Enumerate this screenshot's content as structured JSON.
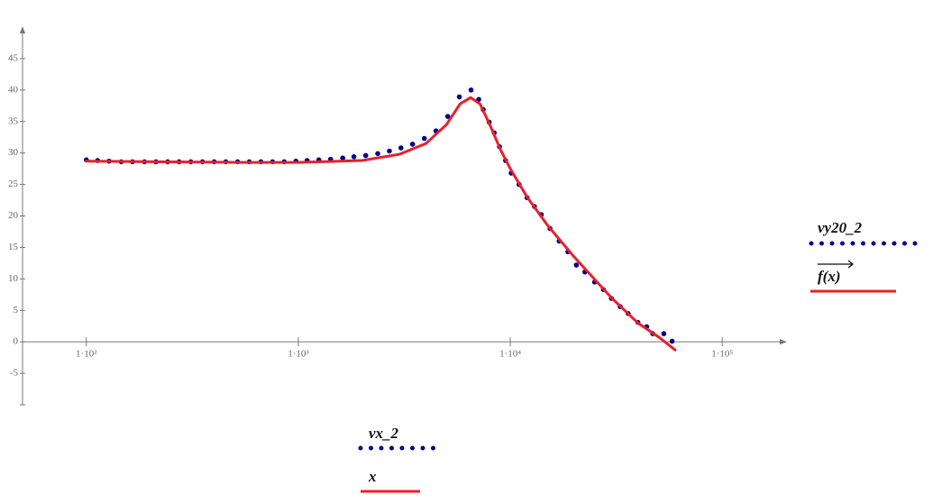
{
  "chart_data": {
    "type": "line",
    "xscale": "log",
    "xlim": [
      50,
      200000
    ],
    "ylim": [
      -10,
      50
    ],
    "xticks": [
      {
        "value": 100,
        "label": "1·10²"
      },
      {
        "value": 1000,
        "label": "1·10³"
      },
      {
        "value": 10000,
        "label": "1·10⁴"
      },
      {
        "value": 100000,
        "label": "1·10⁵"
      }
    ],
    "yticks": [
      -5,
      0,
      5,
      10,
      15,
      20,
      25,
      30,
      35,
      40,
      45
    ],
    "xlabels": [
      "vx_2",
      "x"
    ],
    "series": [
      {
        "name": "vy20_2",
        "style": "dots",
        "color": "#00008b",
        "x": [
          100,
          113,
          128,
          146,
          165,
          188,
          213,
          242,
          274,
          311,
          353,
          401,
          455,
          517,
          587,
          666,
          756,
          858,
          974,
          1100,
          1250,
          1420,
          1620,
          1830,
          2080,
          2370,
          2690,
          3050,
          3460,
          3930,
          4460,
          5070,
          5750,
          6530,
          7100,
          7450,
          7950,
          8400,
          8900,
          9500,
          10100,
          11000,
          12000,
          13000,
          14000,
          15400,
          17000,
          18700,
          20500,
          22500,
          25000,
          27500,
          30000,
          33000,
          36000,
          40000,
          44000,
          47000,
          53000,
          58000
        ],
        "values": [
          28.9,
          28.8,
          28.7,
          28.6,
          28.6,
          28.6,
          28.6,
          28.6,
          28.6,
          28.6,
          28.6,
          28.6,
          28.6,
          28.6,
          28.6,
          28.6,
          28.6,
          28.6,
          28.7,
          28.8,
          28.9,
          29.0,
          29.2,
          29.4,
          29.6,
          29.9,
          30.3,
          30.8,
          31.4,
          32.3,
          33.5,
          35.8,
          38.9,
          40.0,
          38.5,
          36.9,
          34.9,
          33.2,
          31.0,
          28.8,
          26.8,
          25.0,
          22.9,
          21.5,
          20.2,
          18.0,
          16.0,
          14.3,
          12.2,
          11.1,
          9.5,
          8.3,
          6.9,
          5.6,
          4.5,
          3.1,
          2.4,
          1.3,
          1.3,
          0.1
        ]
      },
      {
        "name": "f(x)",
        "style": "line",
        "color": "#e8202a",
        "x": [
          100,
          200,
          500,
          1000,
          2000,
          3000,
          4000,
          5000,
          5800,
          6500,
          7200,
          8000,
          9000,
          10000,
          12000,
          15000,
          20000,
          30000,
          40000,
          50000,
          60000
        ],
        "values": [
          28.7,
          28.6,
          28.5,
          28.5,
          28.8,
          29.8,
          31.5,
          34.5,
          37.8,
          38.8,
          37.8,
          34.5,
          30.5,
          27.5,
          23.0,
          18.5,
          13.5,
          7.0,
          3.0,
          0.8,
          -1.3
        ]
      }
    ]
  }
}
